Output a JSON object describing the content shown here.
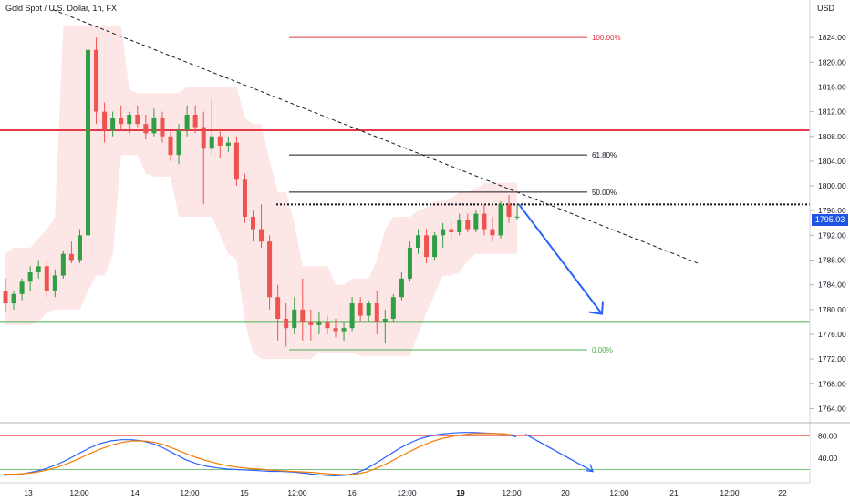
{
  "header": {
    "title": "Gold Spot / U.S. Dollar, 1h, FX",
    "currency": "USD",
    "last_price": "1795.03"
  },
  "colors": {
    "bull": "#26a69a",
    "bull_body": "#2f9e44",
    "bear": "#ef5350",
    "resistance": "#e53945",
    "support": "#4caf50",
    "band": "#fde2e2",
    "arrow": "#2962ff",
    "fib_top": "#e53945",
    "fib_mid": "#131722",
    "fib_low": "#4caf50",
    "stoch_k": "#2962ff",
    "stoch_d": "#f57c00",
    "price_tag": "#1e53e5"
  },
  "chart_data": [
    {
      "type": "candlestick",
      "symbol": "Gold Spot / U.S. Dollar",
      "timeframe": "1h",
      "ylim": [
        1762,
        1828
      ],
      "y_ticks": [
        "1764.00",
        "1768.00",
        "1772.00",
        "1776.00",
        "1780.00",
        "1784.00",
        "1788.00",
        "1792.00",
        "1796.00",
        "1800.00",
        "1804.00",
        "1808.00",
        "1812.00",
        "1816.00",
        "1820.00",
        "1824.00"
      ],
      "x_ticks": [
        "13",
        "12:00",
        "14",
        "12:00",
        "15",
        "12:00",
        "16",
        "12:00",
        "19",
        "12:00",
        "20",
        "12:00",
        "21",
        "12:00",
        "22"
      ],
      "candles": [
        [
          1783.0,
          1785.0,
          1779.5,
          1781.0
        ],
        [
          1781.0,
          1783.0,
          1780.0,
          1782.5
        ],
        [
          1782.5,
          1785.0,
          1781.5,
          1784.5
        ],
        [
          1784.5,
          1787.0,
          1783.0,
          1786.0
        ],
        [
          1786.0,
          1788.0,
          1785.0,
          1787.0
        ],
        [
          1787.0,
          1788.0,
          1782.0,
          1783.0
        ],
        [
          1783.0,
          1786.5,
          1782.0,
          1785.5
        ],
        [
          1785.5,
          1789.5,
          1785.0,
          1789.0
        ],
        [
          1789.0,
          1791.0,
          1787.5,
          1788.0
        ],
        [
          1788.0,
          1793.0,
          1787.5,
          1792.0
        ],
        [
          1792.0,
          1824.0,
          1791.0,
          1822.0
        ],
        [
          1822.0,
          1824.0,
          1810.0,
          1812.0
        ],
        [
          1812.0,
          1813.5,
          1807.0,
          1809.0
        ],
        [
          1809.0,
          1812.0,
          1808.0,
          1811.0
        ],
        [
          1811.0,
          1813.0,
          1809.0,
          1810.0
        ],
        [
          1810.0,
          1812.0,
          1808.5,
          1811.5
        ],
        [
          1811.5,
          1813.0,
          1809.5,
          1810.0
        ],
        [
          1810.0,
          1811.5,
          1807.5,
          1808.5
        ],
        [
          1808.5,
          1812.5,
          1808.0,
          1811.0
        ],
        [
          1811.0,
          1812.0,
          1807.0,
          1808.0
        ],
        [
          1808.0,
          1809.0,
          1804.0,
          1805.0
        ],
        [
          1805.0,
          1810.0,
          1803.5,
          1809.0
        ],
        [
          1809.0,
          1813.0,
          1808.0,
          1811.5
        ],
        [
          1811.5,
          1813.0,
          1808.5,
          1809.5
        ],
        [
          1809.5,
          1812.0,
          1797.0,
          1806.0
        ],
        [
          1806.0,
          1814.0,
          1805.0,
          1808.0
        ],
        [
          1808.0,
          1809.0,
          1804.5,
          1806.5
        ],
        [
          1806.5,
          1808.0,
          1805.5,
          1807.0
        ],
        [
          1807.0,
          1808.0,
          1800.0,
          1801.0
        ],
        [
          1801.0,
          1802.0,
          1794.0,
          1795.0
        ],
        [
          1795.0,
          1796.0,
          1791.0,
          1793.0
        ],
        [
          1793.0,
          1797.0,
          1790.0,
          1791.0
        ],
        [
          1791.0,
          1792.0,
          1780.0,
          1782.0
        ],
        [
          1782.0,
          1784.0,
          1775.0,
          1778.5
        ],
        [
          1778.5,
          1781.0,
          1774.0,
          1777.0
        ],
        [
          1777.0,
          1782.0,
          1776.0,
          1780.0
        ],
        [
          1780.0,
          1785.0,
          1775.0,
          1778.0
        ],
        [
          1778.0,
          1780.0,
          1775.0,
          1777.5
        ],
        [
          1777.5,
          1779.5,
          1776.0,
          1778.0
        ],
        [
          1778.0,
          1779.0,
          1776.0,
          1777.0
        ],
        [
          1777.0,
          1778.5,
          1775.5,
          1776.5
        ],
        [
          1776.5,
          1778.0,
          1775.0,
          1777.0
        ],
        [
          1777.0,
          1782.0,
          1776.5,
          1781.0
        ],
        [
          1781.0,
          1782.0,
          1778.0,
          1779.0
        ],
        [
          1779.0,
          1781.5,
          1778.0,
          1781.0
        ],
        [
          1781.0,
          1783.0,
          1776.0,
          1778.0
        ],
        [
          1778.0,
          1780.0,
          1774.5,
          1778.5
        ],
        [
          1778.5,
          1782.5,
          1778.0,
          1782.0
        ],
        [
          1782.0,
          1786.0,
          1781.5,
          1785.0
        ],
        [
          1785.0,
          1791.0,
          1784.5,
          1790.0
        ],
        [
          1790.0,
          1793.0,
          1789.0,
          1792.0
        ],
        [
          1792.0,
          1793.0,
          1787.5,
          1788.5
        ],
        [
          1788.5,
          1792.5,
          1788.0,
          1792.0
        ],
        [
          1792.0,
          1794.0,
          1790.0,
          1793.0
        ],
        [
          1793.0,
          1794.5,
          1791.5,
          1792.5
        ],
        [
          1792.5,
          1795.5,
          1792.0,
          1794.5
        ],
        [
          1794.5,
          1795.5,
          1792.5,
          1793.0
        ],
        [
          1793.0,
          1796.0,
          1792.5,
          1795.5
        ],
        [
          1795.5,
          1797.0,
          1792.0,
          1793.0
        ],
        [
          1793.0,
          1795.0,
          1791.0,
          1792.0
        ],
        [
          1792.0,
          1797.5,
          1791.5,
          1797.0
        ],
        [
          1797.0,
          1798.5,
          1794.0,
          1795.0
        ],
        [
          1795.0,
          1797.0,
          1794.5,
          1795.03
        ]
      ],
      "support": 1778.0,
      "resistance": 1809.0,
      "breakout_level": 1797.0,
      "trendline": [
        [
          1823.5,
          "start"
        ],
        [
          1787.5,
          "end"
        ]
      ],
      "fib_levels": [
        {
          "label": "100.00%",
          "value": 1824.0
        },
        {
          "label": "61.80%",
          "value": 1805.0
        },
        {
          "label": "50.00%",
          "value": 1799.0
        },
        {
          "label": "0.00%",
          "value": 1773.5
        }
      ],
      "projection": {
        "from": 1797.0,
        "to": 1779.0
      }
    },
    {
      "type": "line",
      "name": "Stochastic",
      "ylim": [
        0,
        100
      ],
      "y_ticks": [
        "80.00",
        "40.00"
      ],
      "levels": [
        80,
        20
      ],
      "series": [
        {
          "values": [
            10,
            11,
            13,
            17,
            22,
            29,
            38,
            48,
            58,
            66,
            71,
            73,
            73,
            71,
            66,
            58,
            48,
            38,
            31,
            26,
            23,
            21,
            20,
            19,
            18,
            17,
            17,
            16,
            14,
            12,
            10,
            9,
            10,
            14,
            22,
            33,
            45,
            57,
            67,
            75,
            80,
            83,
            85,
            86,
            86,
            85,
            84,
            83,
            78
          ]
        },
        {
          "values": [
            12,
            12,
            13,
            15,
            19,
            24,
            31,
            39,
            48,
            56,
            63,
            68,
            71,
            71,
            69,
            64,
            57,
            49,
            42,
            36,
            31,
            27,
            24,
            22,
            21,
            19,
            18,
            17,
            16,
            15,
            13,
            12,
            11,
            12,
            16,
            23,
            32,
            42,
            52,
            61,
            69,
            75,
            79,
            82,
            84,
            84,
            84,
            83,
            81
          ]
        }
      ],
      "projection": {
        "from": 83,
        "to": 20
      }
    }
  ]
}
